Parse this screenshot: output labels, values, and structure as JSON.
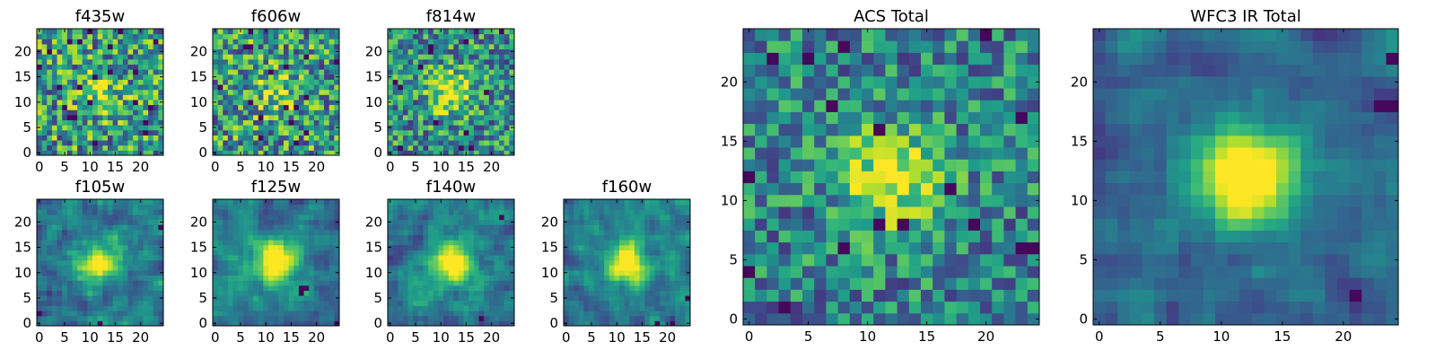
{
  "chart_data": [
    {
      "type": "heatmap",
      "title": "f435w",
      "xlim": [
        0,
        24
      ],
      "ylim": [
        0,
        24
      ],
      "xticks": [
        0,
        5,
        10,
        15,
        20
      ],
      "yticks": [
        0,
        5,
        10,
        15,
        20
      ],
      "grid_size": 25,
      "colormap": "viridis",
      "center_peak": 0.2,
      "noise": 0.8,
      "blur": 0,
      "seed": 11
    },
    {
      "type": "heatmap",
      "title": "f606w",
      "xlim": [
        0,
        24
      ],
      "ylim": [
        0,
        24
      ],
      "xticks": [
        0,
        5,
        10,
        15,
        20
      ],
      "yticks": [
        0,
        5,
        10,
        15,
        20
      ],
      "grid_size": 25,
      "colormap": "viridis",
      "center_peak": 0.2,
      "noise": 0.8,
      "blur": 0,
      "seed": 23
    },
    {
      "type": "heatmap",
      "title": "f814w",
      "xlim": [
        0,
        24
      ],
      "ylim": [
        0,
        24
      ],
      "xticks": [
        0,
        5,
        10,
        15,
        20
      ],
      "yticks": [
        0,
        5,
        10,
        15,
        20
      ],
      "grid_size": 25,
      "colormap": "viridis",
      "center_peak": 0.35,
      "noise": 0.7,
      "blur": 0,
      "seed": 37
    },
    {
      "type": "heatmap",
      "title": "f105w",
      "xlim": [
        0,
        24
      ],
      "ylim": [
        0,
        24
      ],
      "xticks": [
        0,
        5,
        10,
        15,
        20
      ],
      "yticks": [
        0,
        5,
        10,
        15,
        20
      ],
      "grid_size": 25,
      "colormap": "viridis",
      "center_peak": 0.45,
      "noise": 0.55,
      "blur": 1,
      "seed": 41
    },
    {
      "type": "heatmap",
      "title": "f125w",
      "xlim": [
        0,
        24
      ],
      "ylim": [
        0,
        24
      ],
      "xticks": [
        0,
        5,
        10,
        15,
        20
      ],
      "yticks": [
        0,
        5,
        10,
        15,
        20
      ],
      "grid_size": 25,
      "colormap": "viridis",
      "center_peak": 0.5,
      "noise": 0.5,
      "blur": 1,
      "seed": 53
    },
    {
      "type": "heatmap",
      "title": "f140w",
      "xlim": [
        0,
        24
      ],
      "ylim": [
        0,
        24
      ],
      "xticks": [
        0,
        5,
        10,
        15,
        20
      ],
      "yticks": [
        0,
        5,
        10,
        15,
        20
      ],
      "grid_size": 25,
      "colormap": "viridis",
      "center_peak": 0.5,
      "noise": 0.5,
      "blur": 1,
      "seed": 67
    },
    {
      "type": "heatmap",
      "title": "f160w",
      "xlim": [
        0,
        24
      ],
      "ylim": [
        0,
        24
      ],
      "xticks": [
        0,
        5,
        10,
        15,
        20
      ],
      "yticks": [
        0,
        5,
        10,
        15,
        20
      ],
      "grid_size": 25,
      "colormap": "viridis",
      "center_peak": 0.5,
      "noise": 0.5,
      "blur": 1,
      "seed": 79
    },
    {
      "type": "heatmap",
      "title": "ACS Total",
      "xlim": [
        0,
        24
      ],
      "ylim": [
        0,
        24
      ],
      "xticks": [
        0,
        5,
        10,
        15,
        20
      ],
      "yticks": [
        0,
        5,
        10,
        15,
        20
      ],
      "grid_size": 25,
      "colormap": "viridis",
      "center_peak": 0.4,
      "noise": 0.6,
      "blur": 0,
      "seed": 97
    },
    {
      "type": "heatmap",
      "title": "WFC3 IR Total",
      "xlim": [
        0,
        24
      ],
      "ylim": [
        0,
        24
      ],
      "xticks": [
        0,
        5,
        10,
        15,
        20
      ],
      "yticks": [
        0,
        5,
        10,
        15,
        20
      ],
      "grid_size": 25,
      "colormap": "viridis",
      "center_peak": 0.6,
      "noise": 0.4,
      "blur": 1,
      "seed": 113
    }
  ]
}
